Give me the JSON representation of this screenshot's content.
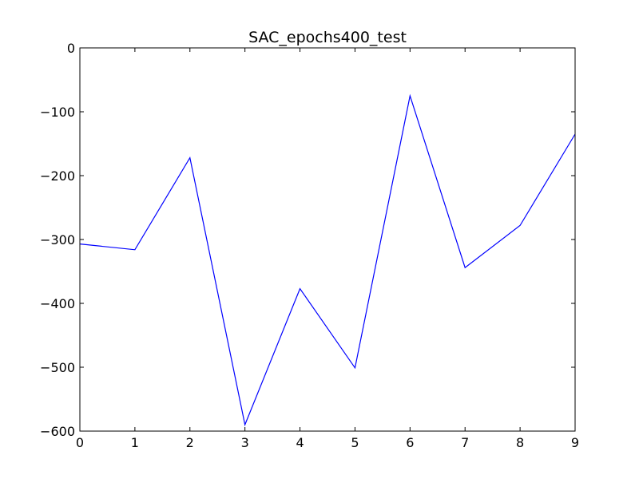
{
  "chart_data": {
    "type": "line",
    "title": "SAC_epochs400_test",
    "xlabel": "",
    "ylabel": "",
    "x": [
      0,
      1,
      2,
      3,
      4,
      5,
      6,
      7,
      8,
      9
    ],
    "series": [
      {
        "values": [
          -307,
          -316,
          -172,
          -590,
          -377,
          -501,
          -75,
          -344,
          -278,
          -135
        ],
        "color": "#0000ff"
      }
    ],
    "xlim": [
      0,
      9
    ],
    "ylim": [
      -600,
      0
    ],
    "xticks": [
      0,
      1,
      2,
      3,
      4,
      5,
      6,
      7,
      8,
      9
    ],
    "yticks": [
      0,
      -100,
      -200,
      -300,
      -400,
      -500,
      -600
    ],
    "xtick_labels": [
      "0",
      "1",
      "2",
      "3",
      "4",
      "5",
      "6",
      "7",
      "8",
      "9"
    ],
    "ytick_labels": [
      "0",
      "−100",
      "−200",
      "−300",
      "−400",
      "−500",
      "−600"
    ],
    "grid": false,
    "legend": "none"
  }
}
